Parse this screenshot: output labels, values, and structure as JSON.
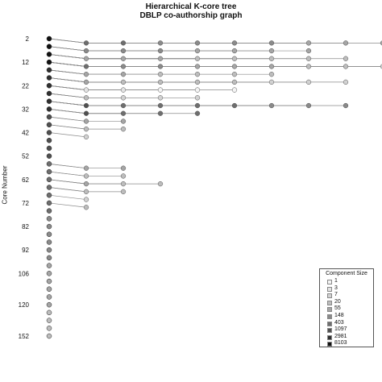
{
  "chart_data": {
    "type": "scatter",
    "title": "Hierarchical K-core tree",
    "subtitle": "DBLP co-authorship graph",
    "xlabel": "",
    "ylabel": "Core Number",
    "y_ticks": [
      2,
      12,
      22,
      32,
      42,
      52,
      62,
      72,
      82,
      92,
      106,
      120,
      152
    ],
    "levels": 39,
    "legend": {
      "title": "Component Size",
      "placement": "bottom-right",
      "items": [
        {
          "label": "1",
          "color": "#f4f4f4"
        },
        {
          "label": "3",
          "color": "#e4e4e4"
        },
        {
          "label": "7",
          "color": "#d2d2d2"
        },
        {
          "label": "20",
          "color": "#bdbdbd"
        },
        {
          "label": "55",
          "color": "#a5a5a5"
        },
        {
          "label": "148",
          "color": "#8a8a8a"
        },
        {
          "label": "403",
          "color": "#6e6e6e"
        },
        {
          "label": "1097",
          "color": "#505050"
        },
        {
          "label": "2981",
          "color": "#303030"
        },
        {
          "label": "8103",
          "color": "#111111"
        }
      ]
    },
    "spine": {
      "column": 0,
      "from_level": 0,
      "to_level": 38
    },
    "branches": [
      {
        "from_level": 0,
        "to": [
          [
            9,
            3,
            5
          ],
          [
            8,
            3,
            4
          ],
          [
            7,
            2,
            3
          ]
        ]
      },
      {
        "from_level": 1,
        "to": [
          [
            7,
            4,
            5
          ],
          [
            6,
            4,
            5
          ],
          [
            5,
            5,
            6
          ],
          [
            4,
            2,
            6
          ],
          [
            3,
            2,
            3
          ],
          [
            2,
            3,
            4
          ],
          [
            1,
            2,
            4
          ]
        ]
      },
      {
        "from_level": 2,
        "to": [
          [
            8,
            5,
            6
          ],
          [
            7,
            5,
            7
          ],
          [
            6,
            4,
            6
          ],
          [
            5,
            5,
            7
          ],
          [
            4,
            4,
            6
          ],
          [
            3,
            5,
            7
          ],
          [
            2,
            4,
            7
          ],
          [
            1,
            4,
            8
          ]
        ]
      },
      {
        "from_level": 3,
        "to": [
          [
            10,
            3,
            7
          ],
          [
            9,
            4,
            6
          ],
          [
            8,
            3,
            5
          ],
          [
            7,
            6,
            7
          ],
          [
            6,
            6,
            8
          ],
          [
            5,
            6,
            8
          ],
          [
            4,
            5,
            8
          ],
          [
            3,
            6,
            8
          ],
          [
            2,
            6,
            8
          ],
          [
            1,
            6,
            9
          ]
        ]
      },
      {
        "from_level": 4,
        "to": [
          [
            6,
            5,
            6
          ],
          [
            5,
            5,
            8
          ],
          [
            4,
            5,
            7
          ],
          [
            3,
            5,
            8
          ],
          [
            2,
            6,
            9
          ],
          [
            1,
            7,
            9
          ]
        ]
      },
      {
        "from_level": 5,
        "to": [
          [
            8,
            5,
            7
          ],
          [
            7,
            6,
            8
          ],
          [
            6,
            6,
            8
          ],
          [
            5,
            6,
            9
          ],
          [
            4,
            7,
            9
          ],
          [
            3,
            7,
            9
          ],
          [
            2,
            8,
            9
          ],
          [
            1,
            8,
            9
          ]
        ]
      },
      {
        "from_level": 6,
        "to": [
          [
            5,
            8,
            9
          ],
          [
            4,
            8,
            9
          ],
          [
            3,
            7,
            9
          ],
          [
            2,
            7,
            9
          ],
          [
            1,
            8,
            9
          ]
        ]
      },
      {
        "from_level": 7,
        "to": [
          [
            4,
            6,
            7
          ],
          [
            3,
            6,
            8
          ],
          [
            2,
            7,
            9
          ],
          [
            1,
            8,
            9
          ]
        ]
      },
      {
        "from_level": 8,
        "to": [
          [
            8,
            2,
            4
          ],
          [
            7,
            3,
            5
          ],
          [
            6,
            5,
            6
          ],
          [
            5,
            6,
            7
          ],
          [
            4,
            5,
            7
          ],
          [
            3,
            6,
            8
          ],
          [
            2,
            6,
            7
          ],
          [
            1,
            6,
            8
          ]
        ]
      },
      {
        "from_level": 9,
        "to": [
          [
            4,
            2,
            3
          ],
          [
            3,
            3,
            4
          ],
          [
            2,
            3,
            5
          ],
          [
            1,
            3,
            5
          ]
        ]
      },
      {
        "from_level": 10,
        "to": [
          [
            2,
            4,
            5
          ],
          [
            1,
            4,
            5
          ]
        ]
      },
      {
        "from_level": 11,
        "to": [
          [
            2,
            5,
            6
          ],
          [
            1,
            5,
            6
          ]
        ]
      },
      {
        "from_level": 12,
        "to": [
          [
            1,
            6,
            7
          ]
        ]
      },
      {
        "from_level": 16,
        "to": [
          [
            2,
            4,
            5
          ],
          [
            1,
            5,
            6
          ]
        ]
      },
      {
        "from_level": 17,
        "to": [
          [
            2,
            5,
            6
          ],
          [
            1,
            5,
            6
          ]
        ]
      },
      {
        "from_level": 18,
        "to": [
          [
            3,
            5,
            6
          ],
          [
            2,
            4,
            6
          ],
          [
            1,
            4,
            7
          ]
        ]
      },
      {
        "from_level": 19,
        "to": [
          [
            2,
            5,
            6
          ],
          [
            1,
            6,
            7
          ]
        ]
      },
      {
        "from_level": 20,
        "to": [
          [
            1,
            6,
            7
          ]
        ]
      },
      {
        "from_level": 21,
        "to": [
          [
            1,
            5,
            6
          ]
        ]
      }
    ]
  }
}
